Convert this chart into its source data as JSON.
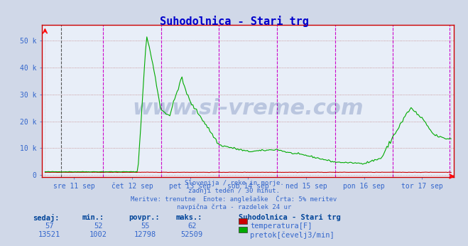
{
  "title": "Suhodolnica - Stari trg",
  "title_color": "#0000cc",
  "bg_color": "#d0d8e8",
  "plot_bg_color": "#e8eef8",
  "grid_color_h": "#c08080",
  "grid_color_v": "#c0c0c0",
  "vline_color": "#cc00cc",
  "yticks": [
    0,
    10000,
    20000,
    30000,
    40000,
    50000
  ],
  "ytick_labels": [
    "0",
    "10 k",
    "20 k",
    "30 k",
    "40 k",
    "50 k"
  ],
  "xlabel_days": [
    "sre 11 sep",
    "čet 12 sep",
    "pet 13 sep",
    "sob 14 sep",
    "ned 15 sep",
    "pon 16 sep",
    "tor 17 sep"
  ],
  "subtitle_lines": [
    "Slovenija / reke in morje.",
    "zadnji teden / 30 minut.",
    "Meritve: trenutne  Enote: anglešaške  Črta: 5% meritev",
    "navpična črta - razdelek 24 ur"
  ],
  "table_headers": [
    "sedaj:",
    "min.:",
    "povpr.:",
    "maks.:"
  ],
  "table_row1": [
    "57",
    "52",
    "55",
    "62"
  ],
  "table_row2": [
    "13521",
    "1002",
    "12798",
    "52509"
  ],
  "legend_label1": "temperatura[F]",
  "legend_label2": "pretok[čevelj3/min]",
  "legend_color1": "#cc0000",
  "legend_color2": "#00aa00",
  "temp_color": "#cc0000",
  "flow_color": "#00aa00",
  "watermark_text": "www.si-vreme.com",
  "watermark_color": "#1a3a8a",
  "watermark_alpha": 0.22,
  "text_color": "#3366cc",
  "table_header_color": "#004499"
}
